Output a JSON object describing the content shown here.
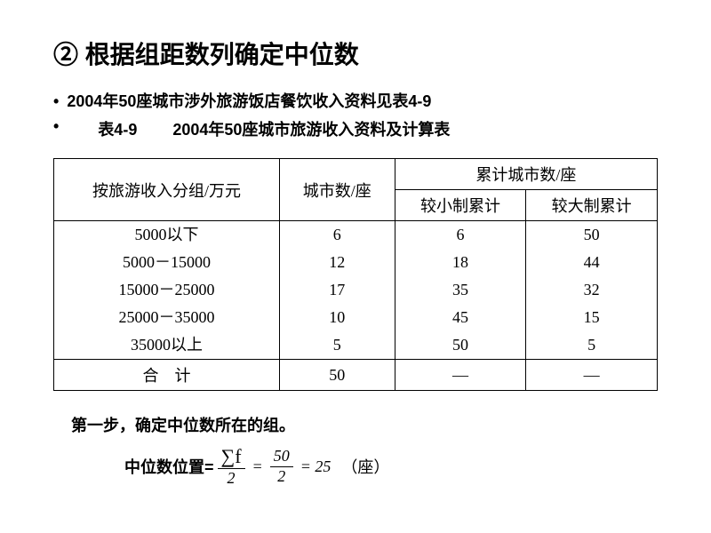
{
  "title": "② 根据组距数列确定中位数",
  "bullets": [
    "2004年50座城市涉外旅游饭店餐饮收入资料见表4-9",
    ""
  ],
  "table_label": "表4-9",
  "table_caption": "2004年50座城市旅游收入资料及计算表",
  "table": {
    "headers": {
      "col1": "按旅游收入分组/万元",
      "col2": "城市数/座",
      "col3_group": "累计城市数/座",
      "col3a": "较小制累计",
      "col3b": "较大制累计"
    },
    "rows": [
      {
        "range": "5000以下",
        "count": "6",
        "cum_small": "6",
        "cum_large": "50"
      },
      {
        "range": "5000－15000",
        "count": "12",
        "cum_small": "18",
        "cum_large": "44"
      },
      {
        "range": "15000－25000",
        "count": "17",
        "cum_small": "35",
        "cum_large": "32"
      },
      {
        "range": "25000－35000",
        "count": "10",
        "cum_small": "45",
        "cum_large": "15"
      },
      {
        "range": "35000以上",
        "count": "5",
        "cum_small": "50",
        "cum_large": "5"
      }
    ],
    "sum": {
      "label": "合　计",
      "count": "50",
      "cum_small": "—",
      "cum_large": "—"
    }
  },
  "step1": "第一步，确定中位数所在的组。",
  "formula": {
    "label": "中位数位置=",
    "num1": "∑f",
    "den1": "2",
    "num2": "50",
    "den2": "2",
    "result": "= 25",
    "unit": "（座）"
  }
}
